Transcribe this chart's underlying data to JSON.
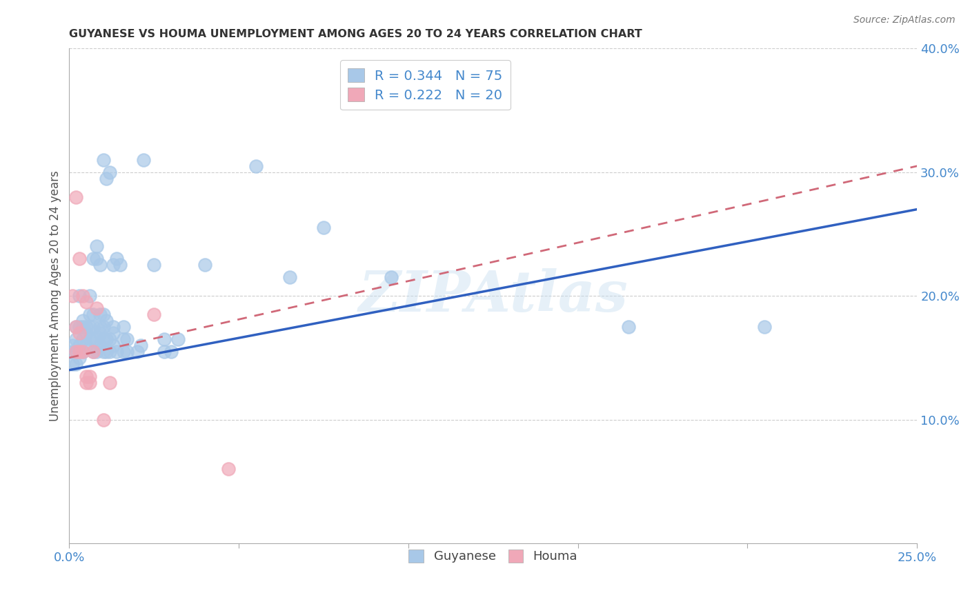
{
  "title": "GUYANESE VS HOUMA UNEMPLOYMENT AMONG AGES 20 TO 24 YEARS CORRELATION CHART",
  "source": "Source: ZipAtlas.com",
  "ylabel": "Unemployment Among Ages 20 to 24 years",
  "xlim": [
    0.0,
    0.25
  ],
  "ylim": [
    0.0,
    0.4
  ],
  "xticks": [
    0.0,
    0.05,
    0.1,
    0.15,
    0.2,
    0.25
  ],
  "yticks": [
    0.1,
    0.2,
    0.3,
    0.4
  ],
  "xtick_labels": [
    "0.0%",
    "",
    "",
    "",
    "",
    "25.0%"
  ],
  "ytick_labels": [
    "10.0%",
    "20.0%",
    "30.0%",
    "40.0%"
  ],
  "background_color": "#ffffff",
  "watermark": "ZIPAtlas",
  "guyanese_label": "Guyanese",
  "houma_label": "Houma",
  "legend_line1": "R = 0.344   N = 75",
  "legend_line2": "R = 0.222   N = 20",
  "guyanese_color": "#a8c8e8",
  "houma_color": "#f0a8b8",
  "line_blue_color": "#3060c0",
  "line_pink_color": "#d06878",
  "tick_color": "#4488cc",
  "guyanese_points": [
    [
      0.001,
      0.145
    ],
    [
      0.001,
      0.155
    ],
    [
      0.001,
      0.16
    ],
    [
      0.002,
      0.145
    ],
    [
      0.002,
      0.155
    ],
    [
      0.002,
      0.165
    ],
    [
      0.002,
      0.175
    ],
    [
      0.003,
      0.15
    ],
    [
      0.003,
      0.16
    ],
    [
      0.003,
      0.175
    ],
    [
      0.003,
      0.2
    ],
    [
      0.004,
      0.155
    ],
    [
      0.004,
      0.165
    ],
    [
      0.004,
      0.175
    ],
    [
      0.004,
      0.18
    ],
    [
      0.005,
      0.16
    ],
    [
      0.005,
      0.17
    ],
    [
      0.005,
      0.175
    ],
    [
      0.006,
      0.165
    ],
    [
      0.006,
      0.175
    ],
    [
      0.006,
      0.185
    ],
    [
      0.006,
      0.2
    ],
    [
      0.007,
      0.155
    ],
    [
      0.007,
      0.165
    ],
    [
      0.007,
      0.175
    ],
    [
      0.007,
      0.185
    ],
    [
      0.007,
      0.23
    ],
    [
      0.008,
      0.155
    ],
    [
      0.008,
      0.165
    ],
    [
      0.008,
      0.23
    ],
    [
      0.008,
      0.24
    ],
    [
      0.009,
      0.16
    ],
    [
      0.009,
      0.17
    ],
    [
      0.009,
      0.175
    ],
    [
      0.009,
      0.185
    ],
    [
      0.009,
      0.225
    ],
    [
      0.01,
      0.155
    ],
    [
      0.01,
      0.165
    ],
    [
      0.01,
      0.175
    ],
    [
      0.01,
      0.185
    ],
    [
      0.01,
      0.31
    ],
    [
      0.011,
      0.155
    ],
    [
      0.011,
      0.165
    ],
    [
      0.011,
      0.18
    ],
    [
      0.011,
      0.295
    ],
    [
      0.012,
      0.155
    ],
    [
      0.012,
      0.165
    ],
    [
      0.012,
      0.3
    ],
    [
      0.013,
      0.16
    ],
    [
      0.013,
      0.17
    ],
    [
      0.013,
      0.175
    ],
    [
      0.013,
      0.225
    ],
    [
      0.014,
      0.155
    ],
    [
      0.014,
      0.23
    ],
    [
      0.015,
      0.225
    ],
    [
      0.016,
      0.155
    ],
    [
      0.016,
      0.165
    ],
    [
      0.016,
      0.175
    ],
    [
      0.017,
      0.155
    ],
    [
      0.017,
      0.165
    ],
    [
      0.02,
      0.155
    ],
    [
      0.021,
      0.16
    ],
    [
      0.022,
      0.31
    ],
    [
      0.025,
      0.225
    ],
    [
      0.028,
      0.155
    ],
    [
      0.028,
      0.165
    ],
    [
      0.03,
      0.155
    ],
    [
      0.032,
      0.165
    ],
    [
      0.04,
      0.225
    ],
    [
      0.055,
      0.305
    ],
    [
      0.065,
      0.215
    ],
    [
      0.075,
      0.255
    ],
    [
      0.095,
      0.215
    ],
    [
      0.165,
      0.175
    ],
    [
      0.205,
      0.175
    ]
  ],
  "houma_points": [
    [
      0.001,
      0.2
    ],
    [
      0.002,
      0.155
    ],
    [
      0.002,
      0.175
    ],
    [
      0.002,
      0.28
    ],
    [
      0.003,
      0.155
    ],
    [
      0.003,
      0.17
    ],
    [
      0.003,
      0.23
    ],
    [
      0.004,
      0.155
    ],
    [
      0.004,
      0.2
    ],
    [
      0.005,
      0.13
    ],
    [
      0.005,
      0.135
    ],
    [
      0.005,
      0.195
    ],
    [
      0.006,
      0.13
    ],
    [
      0.006,
      0.135
    ],
    [
      0.007,
      0.155
    ],
    [
      0.008,
      0.19
    ],
    [
      0.01,
      0.1
    ],
    [
      0.012,
      0.13
    ],
    [
      0.025,
      0.185
    ],
    [
      0.047,
      0.06
    ]
  ],
  "blue_line": [
    [
      0.0,
      0.14
    ],
    [
      0.25,
      0.27
    ]
  ],
  "pink_line": [
    [
      0.0,
      0.15
    ],
    [
      0.25,
      0.305
    ]
  ]
}
